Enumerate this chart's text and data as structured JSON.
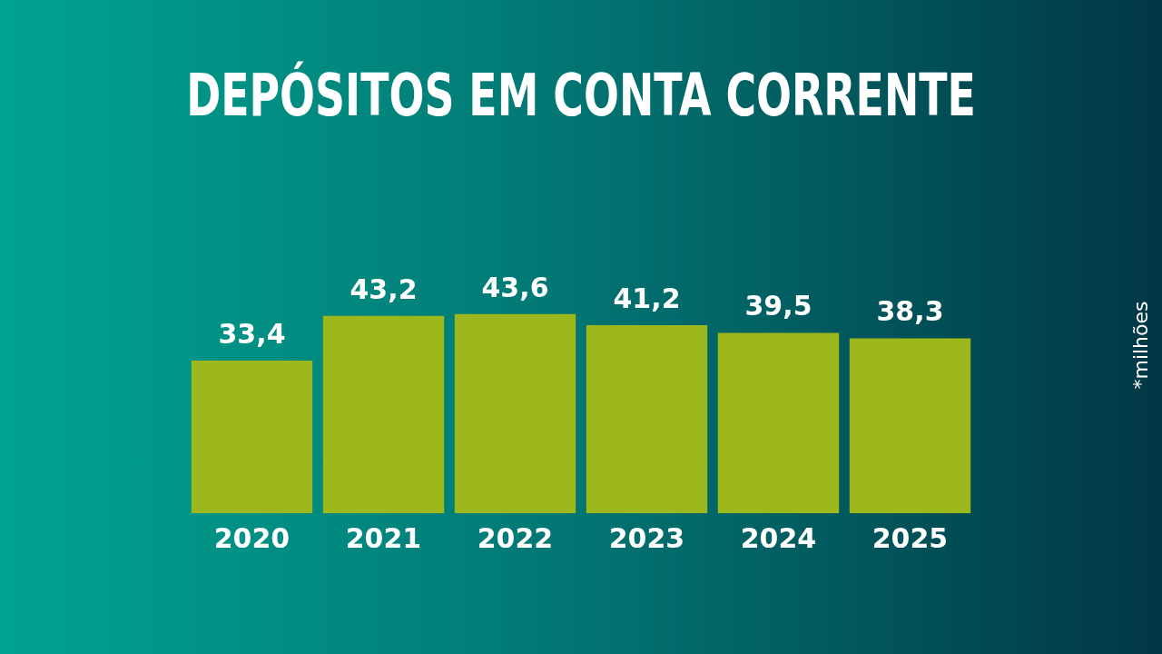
{
  "chart_data": {
    "type": "bar",
    "title": "DEPÓSITOS EM CONTA CORRENTE",
    "categories": [
      "2020",
      "2021",
      "2022",
      "2023",
      "2024",
      "2025"
    ],
    "values": [
      33.4,
      43.2,
      43.6,
      41.2,
      39.5,
      38.3
    ],
    "value_labels": [
      "33,4",
      "43,2",
      "43,6",
      "41,2",
      "39,5",
      "38,3"
    ],
    "color": "#9cb81c",
    "tick_labels": "x",
    "grid": false,
    "legend": false,
    "annotations": [
      "*milhões"
    ]
  }
}
